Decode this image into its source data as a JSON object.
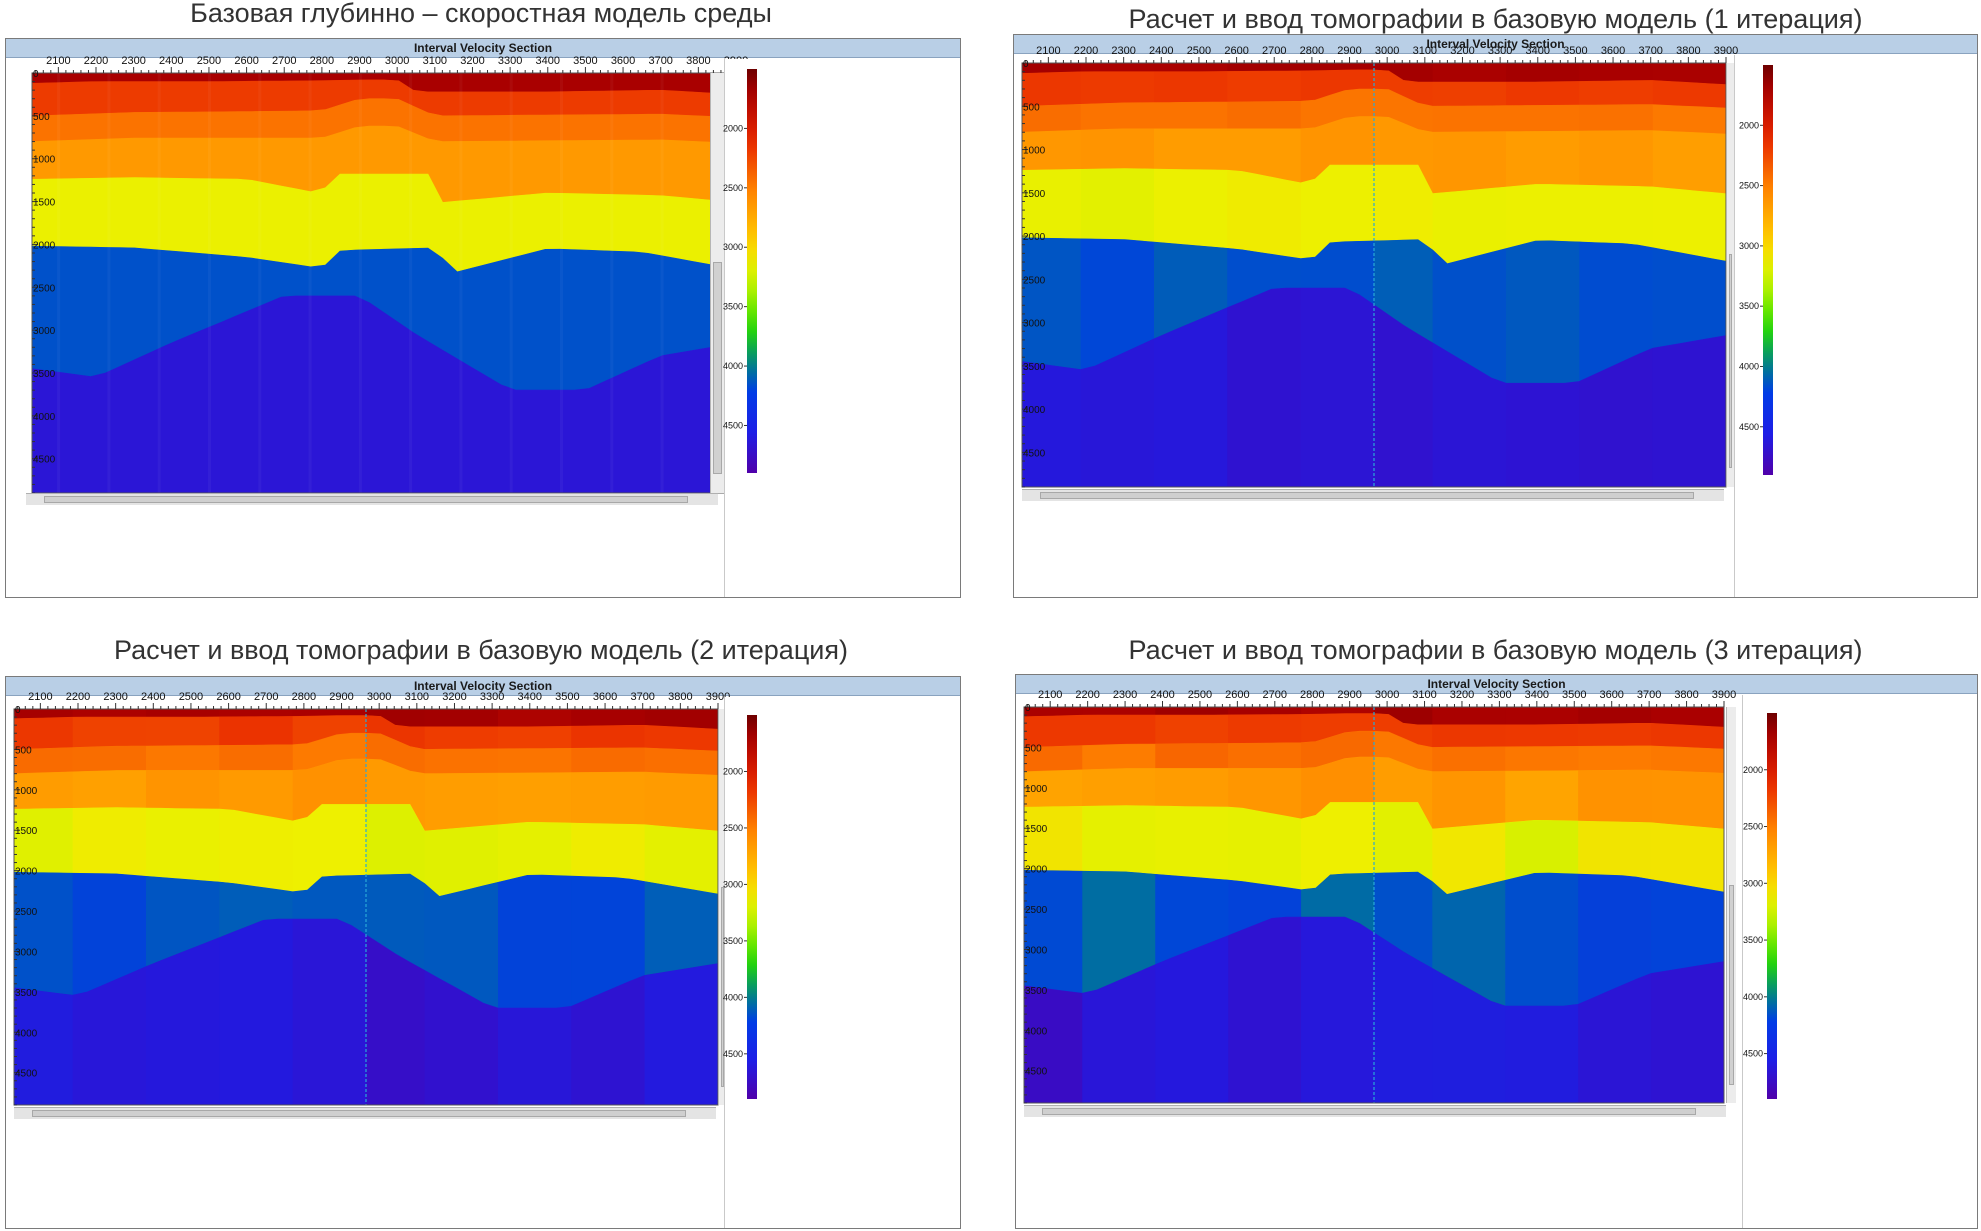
{
  "panels": [
    {
      "title": "Базовая глубинно – скоростная модель среды",
      "header": "Interval Velocity Section",
      "iteration": 0
    },
    {
      "title": "Расчет и ввод томографии в базовую модель (1 итерация)",
      "header": "Interval Velocity Section",
      "iteration": 1
    },
    {
      "title": "Расчет и ввод томографии в базовую модель (2 итерация)",
      "header": "Interval Velocity Section",
      "iteration": 2
    },
    {
      "title": "Расчет и ввод томографии в базовую модель (3 итерация)",
      "header": "Interval Velocity Section",
      "iteration": 3
    }
  ],
  "chart_data": {
    "type": "heatmap",
    "colormap": "rainbow (dark red = low velocity, purple = high velocity)",
    "colors": {
      "low_velocity": "#7a0000",
      "mid_velocity": "#22dd00",
      "high_velocity": "#4a00a0",
      "header_band": "#b9cfe6",
      "marker_line": "#28a8d8"
    },
    "x_axis": {
      "ticks": [
        "2100",
        "2200",
        "2300",
        "2400",
        "2500",
        "2600",
        "2700",
        "2800",
        "2900",
        "3000",
        "3100",
        "3200",
        "3300",
        "3400",
        "3500",
        "3600",
        "3700",
        "3800",
        "3900"
      ],
      "range": [
        2030,
        3900
      ]
    },
    "y_axis": {
      "ticks": [
        "0",
        "500",
        "1000",
        "1500",
        "2000",
        "2500",
        "3000",
        "3500",
        "4000",
        "4500"
      ],
      "range": [
        0,
        4900
      ],
      "inverted": true
    },
    "colorbar": {
      "ticks": [
        "2000",
        "2500",
        "3000",
        "3500",
        "4000",
        "4500"
      ],
      "range": [
        1500,
        4900
      ]
    },
    "marker_x": 2965,
    "layers": [
      {
        "velocity": 1700,
        "bottom_depth": {
          "x": [
            2030,
            2200,
            2500,
            2800,
            2900,
            3000,
            3050,
            3400,
            3700,
            3900
          ],
          "depth": [
            120,
            100,
            100,
            90,
            80,
            80,
            220,
            220,
            200,
            250
          ]
        }
      },
      {
        "velocity": 2200,
        "bottom_depth": {
          "x": [
            2030,
            2300,
            2600,
            2800,
            2900,
            3000,
            3100,
            3400,
            3700,
            3900
          ],
          "depth": [
            500,
            460,
            450,
            440,
            300,
            300,
            500,
            490,
            480,
            520
          ]
        }
      },
      {
        "velocity": 2450,
        "bottom_depth": {
          "x": [
            2030,
            2300,
            2600,
            2800,
            2900,
            3000,
            3100,
            3400,
            3700,
            3900
          ],
          "depth": [
            800,
            760,
            760,
            760,
            620,
            620,
            800,
            790,
            780,
            820
          ]
        }
      },
      {
        "velocity": 2650,
        "bottom_depth": {
          "x": [
            2030,
            2300,
            2600,
            2800,
            2830,
            3100,
            3120,
            3400,
            3700,
            3900
          ],
          "depth": [
            1240,
            1220,
            1240,
            1410,
            1180,
            1180,
            1510,
            1400,
            1430,
            1510
          ]
        }
      },
      {
        "velocity": 3150,
        "bottom_depth": {
          "x": [
            2030,
            2300,
            2600,
            2800,
            2850,
            3100,
            3150,
            3400,
            3650,
            3900
          ],
          "depth": [
            2020,
            2040,
            2150,
            2280,
            2070,
            2040,
            2330,
            2050,
            2090,
            2290
          ]
        }
      },
      {
        "velocity": 4150,
        "bottom_depth": {
          "x": [
            2030,
            2200,
            2400,
            2700,
            2900,
            3050,
            3300,
            3500,
            3700,
            3900
          ],
          "depth": [
            3450,
            3550,
            3150,
            2600,
            2600,
            3050,
            3700,
            3700,
            3300,
            3150
          ]
        }
      },
      {
        "velocity": 4650,
        "bottom_depth": {
          "x": [
            2030,
            3900
          ],
          "depth": [
            4900,
            4900
          ]
        }
      }
    ],
    "noise_amplitude": [
      0,
      0.08,
      0.12,
      0.16
    ]
  }
}
